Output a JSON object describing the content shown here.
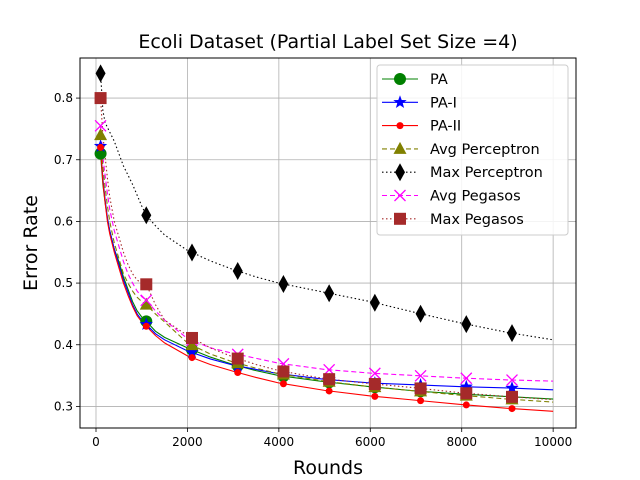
{
  "chart_data": {
    "type": "line",
    "title": "Ecoli Dataset (Partial Label Set Size =4)",
    "xlabel": "Rounds",
    "ylabel": "Error Rate",
    "xlim": [
      -350,
      10500
    ],
    "ylim": [
      0.265,
      0.865
    ],
    "xticks": [
      0,
      2000,
      4000,
      6000,
      8000,
      10000
    ],
    "yticks": [
      0.3,
      0.4,
      0.5,
      0.6,
      0.7,
      0.8
    ],
    "grid": true,
    "legend_position": "top-right",
    "series": [
      {
        "name": "PA",
        "color": "#008000",
        "line_style": "solid",
        "marker": "circle",
        "marker_x": [
          100,
          1100,
          2100,
          3100,
          4100,
          5100,
          6100,
          7100,
          8100,
          9100
        ],
        "x": [
          100,
          150,
          200,
          250,
          300,
          400,
          500,
          600,
          700,
          800,
          900,
          1000,
          1100,
          1300,
          1500,
          2000,
          2500,
          3000,
          3500,
          4000,
          5000,
          6000,
          7000,
          8000,
          9000,
          10000
        ],
        "y": [
          0.71,
          0.66,
          0.63,
          0.605,
          0.585,
          0.555,
          0.535,
          0.51,
          0.49,
          0.47,
          0.455,
          0.445,
          0.438,
          0.422,
          0.412,
          0.395,
          0.38,
          0.368,
          0.358,
          0.35,
          0.34,
          0.332,
          0.325,
          0.32,
          0.316,
          0.312
        ]
      },
      {
        "name": "PA-I",
        "color": "#0000ff",
        "line_style": "solid",
        "marker": "star",
        "marker_x": [
          100,
          1100,
          2100,
          3100,
          4100,
          5100,
          6100,
          7100,
          8100,
          9100
        ],
        "x": [
          100,
          150,
          200,
          250,
          300,
          400,
          500,
          600,
          700,
          800,
          900,
          1000,
          1100,
          1300,
          1500,
          2000,
          2500,
          3000,
          3500,
          4000,
          5000,
          6000,
          7000,
          8000,
          9000,
          10000
        ],
        "y": [
          0.722,
          0.67,
          0.635,
          0.605,
          0.585,
          0.555,
          0.53,
          0.505,
          0.485,
          0.465,
          0.45,
          0.44,
          0.433,
          0.418,
          0.408,
          0.39,
          0.377,
          0.367,
          0.36,
          0.353,
          0.344,
          0.338,
          0.335,
          0.332,
          0.33,
          0.327
        ]
      },
      {
        "name": "PA-II",
        "color": "#ff0000",
        "line_style": "solid",
        "marker": "dot",
        "marker_x": [
          100,
          1100,
          2100,
          3100,
          4100,
          5100,
          6100,
          7100,
          8100,
          9100
        ],
        "x": [
          100,
          150,
          200,
          250,
          300,
          400,
          500,
          600,
          700,
          800,
          900,
          1000,
          1100,
          1300,
          1500,
          2000,
          2500,
          3000,
          3500,
          4000,
          5000,
          6000,
          7000,
          8000,
          9000,
          10000
        ],
        "y": [
          0.72,
          0.665,
          0.63,
          0.6,
          0.58,
          0.55,
          0.525,
          0.5,
          0.48,
          0.462,
          0.447,
          0.437,
          0.43,
          0.415,
          0.403,
          0.382,
          0.368,
          0.357,
          0.347,
          0.338,
          0.326,
          0.317,
          0.31,
          0.303,
          0.297,
          0.292
        ]
      },
      {
        "name": "Avg Perceptron",
        "color": "#808000",
        "line_style": "dashed",
        "marker": "triangle",
        "marker_x": [
          100,
          1100,
          2100,
          3100,
          4100,
          5100,
          6100,
          7100,
          8100,
          9100
        ],
        "x": [
          100,
          150,
          200,
          250,
          300,
          400,
          500,
          600,
          700,
          800,
          900,
          1000,
          1100,
          1300,
          1500,
          2000,
          2500,
          3000,
          3500,
          4000,
          5000,
          6000,
          7000,
          8000,
          9000,
          10000
        ],
        "y": [
          0.74,
          0.69,
          0.655,
          0.625,
          0.6,
          0.565,
          0.54,
          0.515,
          0.5,
          0.487,
          0.477,
          0.47,
          0.465,
          0.45,
          0.437,
          0.403,
          0.385,
          0.372,
          0.362,
          0.353,
          0.341,
          0.332,
          0.325,
          0.318,
          0.312,
          0.307
        ]
      },
      {
        "name": "Max Perceptron",
        "color": "#000000",
        "line_style": "dotted",
        "marker": "thin-diamond",
        "marker_x": [
          100,
          1100,
          2100,
          3100,
          4100,
          5100,
          6100,
          7100,
          8100,
          9100
        ],
        "x": [
          100,
          150,
          200,
          300,
          400,
          500,
          600,
          800,
          1000,
          1100,
          1300,
          1500,
          2000,
          2500,
          3000,
          3500,
          4000,
          5000,
          6000,
          7000,
          8000,
          9000,
          10000
        ],
        "y": [
          0.84,
          0.78,
          0.76,
          0.745,
          0.73,
          0.71,
          0.69,
          0.66,
          0.625,
          0.61,
          0.593,
          0.578,
          0.553,
          0.536,
          0.522,
          0.51,
          0.5,
          0.485,
          0.47,
          0.452,
          0.435,
          0.42,
          0.408
        ]
      },
      {
        "name": "Avg Pegasos",
        "color": "#ff00ff",
        "line_style": "dashed",
        "marker": "x",
        "marker_x": [
          100,
          1100,
          2100,
          3100,
          4100,
          5100,
          6100,
          7100,
          8100,
          9100
        ],
        "x": [
          100,
          150,
          200,
          250,
          300,
          400,
          500,
          600,
          700,
          800,
          900,
          1000,
          1100,
          1300,
          1500,
          2000,
          2500,
          3000,
          3500,
          4000,
          5000,
          6000,
          7000,
          8000,
          9000,
          10000
        ],
        "y": [
          0.755,
          0.705,
          0.675,
          0.645,
          0.62,
          0.585,
          0.56,
          0.535,
          0.515,
          0.5,
          0.487,
          0.478,
          0.472,
          0.455,
          0.44,
          0.41,
          0.395,
          0.386,
          0.378,
          0.37,
          0.36,
          0.354,
          0.35,
          0.346,
          0.343,
          0.341
        ]
      },
      {
        "name": "Max Pegasos",
        "color": "#a52a2a",
        "line_style": "dotted",
        "marker": "square",
        "marker_x": [
          100,
          1100,
          2100,
          3100,
          4100,
          5100,
          6100,
          7100,
          8100,
          9100
        ],
        "x": [
          100,
          150,
          200,
          250,
          300,
          400,
          500,
          600,
          700,
          800,
          900,
          1000,
          1100,
          1300,
          1500,
          2000,
          2500,
          3000,
          3500,
          4000,
          5000,
          6000,
          7000,
          8000,
          9000,
          10000
        ],
        "y": [
          0.8,
          0.74,
          0.705,
          0.67,
          0.64,
          0.6,
          0.575,
          0.55,
          0.53,
          0.515,
          0.505,
          0.5,
          0.498,
          0.465,
          0.44,
          0.415,
          0.395,
          0.38,
          0.368,
          0.358,
          0.345,
          0.337,
          0.33,
          0.322,
          0.316,
          0.311
        ]
      }
    ]
  }
}
